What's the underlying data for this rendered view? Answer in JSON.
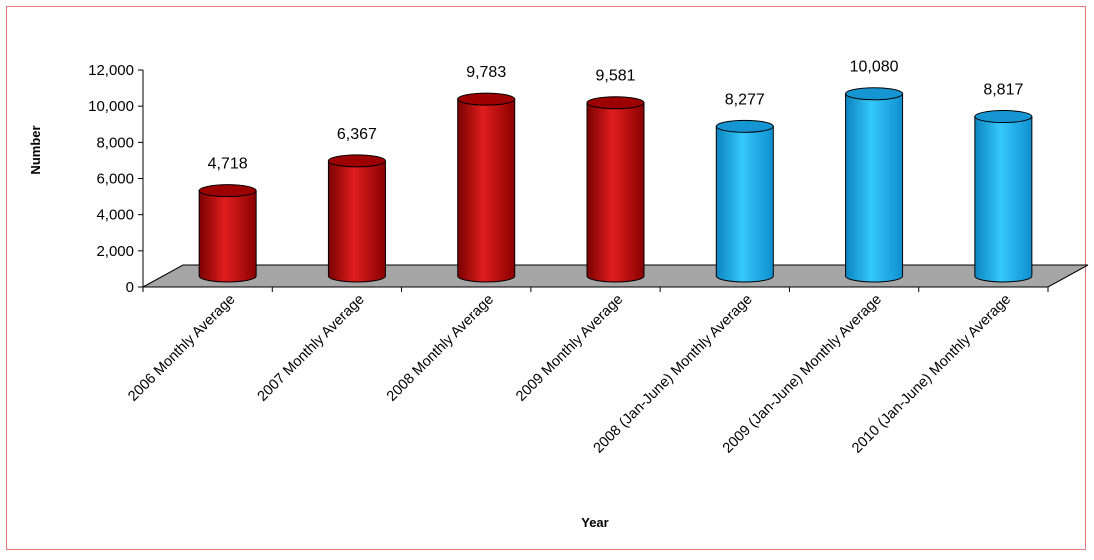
{
  "chart_data": {
    "type": "bar",
    "title": "",
    "xlabel": "Year",
    "ylabel": "Number",
    "ylim": [
      0,
      12000
    ],
    "yticks": [
      "0",
      "2,000",
      "4,000",
      "6,000",
      "8,000",
      "10,000",
      "12,000"
    ],
    "grid": false,
    "legend": "none",
    "categories": [
      "2006 Monthly Average",
      "2007 Monthly Average",
      "2008 Monthly Average",
      "2009 Monthly Average",
      "2008 (Jan-June) Monthly Average",
      "2009 (Jan-June) Monthly Average",
      "2010 (Jan-June) Monthly Average"
    ],
    "values": [
      4718,
      6367,
      9783,
      9581,
      8277,
      10080,
      8817
    ],
    "data_labels": [
      "4,718",
      "6,367",
      "9,783",
      "9,581",
      "8,277",
      "10,080",
      "8,817"
    ],
    "bar_colors": [
      "#c00000",
      "#c00000",
      "#c00000",
      "#c00000",
      "#1ab0ec",
      "#1ab0ec",
      "#1ab0ec"
    ],
    "floor_color": "#a6a6a6"
  }
}
